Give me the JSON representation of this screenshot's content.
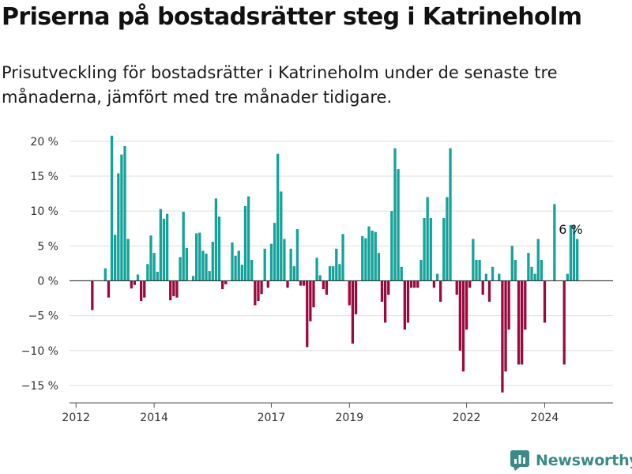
{
  "title": "Priserna på bostadsrätter steg i Katrineholm",
  "subtitle": "Prisutveckling för bostadsrätter i Katrineholm under de senaste tre månaderna, jämfört med tre månader tidigare.",
  "brand": "Newsworthy",
  "colors": {
    "positive": "#13a39a",
    "negative": "#9b0a3e",
    "grid": "#dddddd",
    "axis": "#555555",
    "zero": "#333333",
    "brand": "#3a8a86"
  },
  "chart_data": {
    "type": "bar",
    "title": "",
    "xlabel": "",
    "ylabel": "",
    "ylim": [
      -17.5,
      21
    ],
    "y_ticks": [
      {
        "value": 20,
        "label": "20 %"
      },
      {
        "value": 15,
        "label": "15 %"
      },
      {
        "value": 10,
        "label": "10 %"
      },
      {
        "value": 5,
        "label": "5 %"
      },
      {
        "value": 0,
        "label": "0 %"
      },
      {
        "value": -5,
        "label": "−5 %"
      },
      {
        "value": -10,
        "label": "−10 %"
      },
      {
        "value": -15,
        "label": "−15 %"
      }
    ],
    "x_ticks": [
      {
        "value": "2012-01",
        "label": "2012"
      },
      {
        "value": "2014-01",
        "label": "2014"
      },
      {
        "value": "2017-01",
        "label": "2017"
      },
      {
        "value": "2019-01",
        "label": "2019"
      },
      {
        "value": "2022-01",
        "label": "2022"
      },
      {
        "value": "2024-01",
        "label": "2024"
      }
    ],
    "xlim": [
      "2011-11",
      "2025-10"
    ],
    "annotation": {
      "label": "6 %",
      "x": "2024-09"
    },
    "bars": [
      [
        "2012-06",
        -4.2
      ],
      [
        "2012-10",
        1.8
      ],
      [
        "2012-11",
        -2.4
      ],
      [
        "2012-12",
        20.8
      ],
      [
        "2013-01",
        6.6
      ],
      [
        "2013-02",
        15.4
      ],
      [
        "2013-03",
        18.1
      ],
      [
        "2013-04",
        19.3
      ],
      [
        "2013-05",
        6.0
      ],
      [
        "2013-06",
        -1.1
      ],
      [
        "2013-07",
        -0.6
      ],
      [
        "2013-08",
        0.9
      ],
      [
        "2013-09",
        -2.9
      ],
      [
        "2013-10",
        -2.4
      ],
      [
        "2013-11",
        2.4
      ],
      [
        "2013-12",
        6.5
      ],
      [
        "2014-01",
        4.0
      ],
      [
        "2014-02",
        1.3
      ],
      [
        "2014-03",
        10.3
      ],
      [
        "2014-04",
        8.9
      ],
      [
        "2014-05",
        9.6
      ],
      [
        "2014-06",
        -2.8
      ],
      [
        "2014-07",
        -2.2
      ],
      [
        "2014-08",
        -2.4
      ],
      [
        "2014-09",
        3.4
      ],
      [
        "2014-10",
        9.9
      ],
      [
        "2014-11",
        4.7
      ],
      [
        "2015-01",
        0.7
      ],
      [
        "2015-02",
        6.8
      ],
      [
        "2015-03",
        6.9
      ],
      [
        "2015-04",
        4.3
      ],
      [
        "2015-05",
        3.9
      ],
      [
        "2015-06",
        1.4
      ],
      [
        "2015-07",
        5.6
      ],
      [
        "2015-08",
        11.8
      ],
      [
        "2015-09",
        9.2
      ],
      [
        "2015-10",
        -1.2
      ],
      [
        "2015-11",
        -0.5
      ],
      [
        "2016-01",
        5.5
      ],
      [
        "2016-02",
        3.6
      ],
      [
        "2016-03",
        4.3
      ],
      [
        "2016-04",
        2.3
      ],
      [
        "2016-05",
        10.7
      ],
      [
        "2016-06",
        12.1
      ],
      [
        "2016-07",
        3.0
      ],
      [
        "2016-08",
        -3.5
      ],
      [
        "2016-09",
        -2.9
      ],
      [
        "2016-10",
        -1.9
      ],
      [
        "2016-11",
        4.6
      ],
      [
        "2016-12",
        -1.0
      ],
      [
        "2017-01",
        5.3
      ],
      [
        "2017-02",
        8.3
      ],
      [
        "2017-03",
        18.2
      ],
      [
        "2017-04",
        12.8
      ],
      [
        "2017-05",
        6.0
      ],
      [
        "2017-06",
        -1.0
      ],
      [
        "2017-07",
        4.6
      ],
      [
        "2017-08",
        2.1
      ],
      [
        "2017-09",
        7.4
      ],
      [
        "2017-10",
        -0.7
      ],
      [
        "2017-11",
        -0.7
      ],
      [
        "2017-12",
        -9.5
      ],
      [
        "2018-01",
        -5.8
      ],
      [
        "2018-02",
        -3.8
      ],
      [
        "2018-03",
        3.3
      ],
      [
        "2018-04",
        0.8
      ],
      [
        "2018-05",
        -1.2
      ],
      [
        "2018-06",
        -2.0
      ],
      [
        "2018-07",
        2.1
      ],
      [
        "2018-08",
        2.1
      ],
      [
        "2018-09",
        4.6
      ],
      [
        "2018-10",
        2.4
      ],
      [
        "2018-11",
        6.7
      ],
      [
        "2019-01",
        -3.5
      ],
      [
        "2019-02",
        -9.0
      ],
      [
        "2019-03",
        -4.8
      ],
      [
        "2019-05",
        6.4
      ],
      [
        "2019-06",
        6.1
      ],
      [
        "2019-07",
        7.8
      ],
      [
        "2019-08",
        7.2
      ],
      [
        "2019-09",
        7.0
      ],
      [
        "2019-10",
        4.0
      ],
      [
        "2019-11",
        -3.0
      ],
      [
        "2019-12",
        -6.0
      ],
      [
        "2020-01",
        -2.0
      ],
      [
        "2020-02",
        10.0
      ],
      [
        "2020-03",
        19.0
      ],
      [
        "2020-04",
        16.0
      ],
      [
        "2020-05",
        2.0
      ],
      [
        "2020-06",
        -7.0
      ],
      [
        "2020-07",
        -6.0
      ],
      [
        "2020-08",
        -1.0
      ],
      [
        "2020-09",
        -1.0
      ],
      [
        "2020-10",
        -1.0
      ],
      [
        "2020-11",
        3.0
      ],
      [
        "2020-12",
        9.0
      ],
      [
        "2021-01",
        12.0
      ],
      [
        "2021-02",
        9.0
      ],
      [
        "2021-03",
        -1.0
      ],
      [
        "2021-04",
        1.0
      ],
      [
        "2021-05",
        -3.0
      ],
      [
        "2021-06",
        9.0
      ],
      [
        "2021-07",
        12.0
      ],
      [
        "2021-08",
        19.0
      ],
      [
        "2021-10",
        -2.0
      ],
      [
        "2021-11",
        -10.0
      ],
      [
        "2021-12",
        -13.0
      ],
      [
        "2022-01",
        -7.0
      ],
      [
        "2022-02",
        -1.0
      ],
      [
        "2022-03",
        6.0
      ],
      [
        "2022-04",
        3.0
      ],
      [
        "2022-05",
        3.0
      ],
      [
        "2022-06",
        -2.0
      ],
      [
        "2022-07",
        1.0
      ],
      [
        "2022-08",
        -3.0
      ],
      [
        "2022-09",
        2.0
      ],
      [
        "2022-11",
        1.0
      ],
      [
        "2022-12",
        -16.0
      ],
      [
        "2023-01",
        -13.0
      ],
      [
        "2023-02",
        -7.0
      ],
      [
        "2023-03",
        5.0
      ],
      [
        "2023-04",
        3.0
      ],
      [
        "2023-05",
        -12.0
      ],
      [
        "2023-06",
        -12.0
      ],
      [
        "2023-07",
        -7.0
      ],
      [
        "2023-08",
        4.0
      ],
      [
        "2023-09",
        2.0
      ],
      [
        "2023-10",
        1.0
      ],
      [
        "2023-11",
        6.0
      ],
      [
        "2023-12",
        3.0
      ],
      [
        "2024-01",
        -6.0
      ],
      [
        "2024-04",
        11.0
      ],
      [
        "2024-07",
        -12.0
      ],
      [
        "2024-08",
        1.0
      ],
      [
        "2024-09",
        8.0
      ],
      [
        "2024-10",
        8.0
      ],
      [
        "2024-11",
        6.0
      ]
    ]
  }
}
